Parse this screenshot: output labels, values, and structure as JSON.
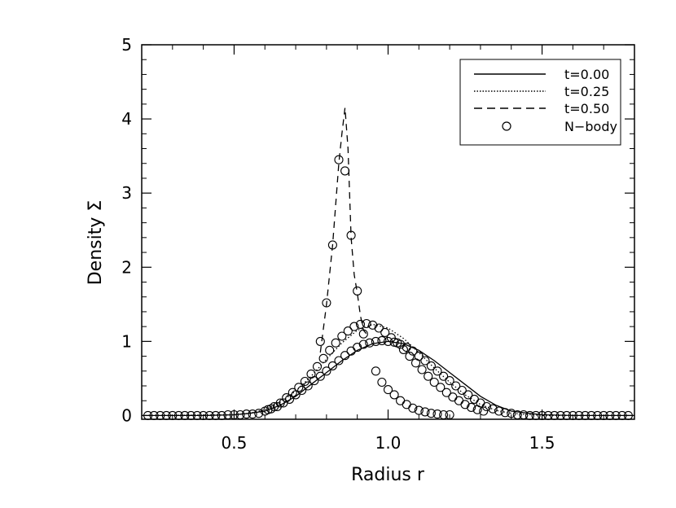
{
  "chart_data": {
    "type": "line",
    "title": "",
    "xlabel": "Radius r",
    "ylabel": "Density Σ",
    "xlim": [
      0.2,
      1.8
    ],
    "ylim": [
      -0.05,
      5.0
    ],
    "x_ticks": [
      {
        "value": 0.5,
        "label": "0.5"
      },
      {
        "value": 1.0,
        "label": "1.0"
      },
      {
        "value": 1.5,
        "label": "1.5"
      }
    ],
    "y_ticks": [
      {
        "value": 0,
        "label": "0"
      },
      {
        "value": 1,
        "label": "1"
      },
      {
        "value": 2,
        "label": "2"
      },
      {
        "value": 3,
        "label": "3"
      },
      {
        "value": 4,
        "label": "4"
      },
      {
        "value": 5,
        "label": "5"
      }
    ],
    "grid": false,
    "legend": {
      "placement": "top-right",
      "entries": [
        {
          "label": "t=0.00",
          "style": "solid"
        },
        {
          "label": "t=0.25",
          "style": "dotted"
        },
        {
          "label": "t=0.50",
          "style": "dashed"
        },
        {
          "label": "N−body",
          "style": "marker"
        }
      ]
    },
    "series": [
      {
        "name": "t=0.00",
        "style": "solid",
        "x": [
          0.2,
          0.4,
          0.5,
          0.55,
          0.6,
          0.65,
          0.7,
          0.75,
          0.8,
          0.85,
          0.9,
          0.95,
          1.0,
          1.05,
          1.1,
          1.15,
          1.2,
          1.25,
          1.3,
          1.35,
          1.4,
          1.5,
          1.6,
          1.8
        ],
        "y": [
          0,
          0,
          0.01,
          0.03,
          0.06,
          0.14,
          0.26,
          0.42,
          0.58,
          0.74,
          0.88,
          0.97,
          1.0,
          0.97,
          0.88,
          0.74,
          0.58,
          0.42,
          0.26,
          0.14,
          0.06,
          0.01,
          0,
          0
        ]
      },
      {
        "name": "t=0.25",
        "style": "dotted",
        "x": [
          0.2,
          0.5,
          0.55,
          0.6,
          0.65,
          0.7,
          0.75,
          0.8,
          0.85,
          0.9,
          0.95,
          1.0,
          1.05,
          1.1,
          1.15,
          1.2,
          1.25,
          1.3,
          1.35,
          1.4,
          1.5,
          1.8
        ],
        "y": [
          0,
          0.01,
          0.03,
          0.08,
          0.18,
          0.33,
          0.53,
          0.76,
          0.98,
          1.15,
          1.23,
          1.18,
          1.04,
          0.85,
          0.64,
          0.45,
          0.28,
          0.15,
          0.07,
          0.03,
          0,
          0
        ]
      },
      {
        "name": "t=0.50",
        "style": "dashed",
        "x": [
          0.78,
          0.8,
          0.82,
          0.84,
          0.85,
          0.86,
          0.87,
          0.88,
          0.89,
          0.9,
          0.91,
          0.92,
          0.93
        ],
        "y": [
          0.85,
          1.5,
          2.3,
          3.4,
          3.8,
          4.15,
          3.6,
          2.4,
          1.9,
          1.65,
          1.35,
          1.15,
          1.1
        ]
      }
    ],
    "nbody_points": [
      {
        "x": 0.22,
        "y": 0
      },
      {
        "x": 0.24,
        "y": 0
      },
      {
        "x": 0.26,
        "y": 0
      },
      {
        "x": 0.28,
        "y": 0
      },
      {
        "x": 0.3,
        "y": 0
      },
      {
        "x": 0.32,
        "y": 0
      },
      {
        "x": 0.34,
        "y": 0
      },
      {
        "x": 0.36,
        "y": 0
      },
      {
        "x": 0.38,
        "y": 0
      },
      {
        "x": 0.4,
        "y": 0
      },
      {
        "x": 0.42,
        "y": 0
      },
      {
        "x": 0.44,
        "y": 0
      },
      {
        "x": 0.46,
        "y": 0
      },
      {
        "x": 0.48,
        "y": 0.01
      },
      {
        "x": 0.5,
        "y": 0.01
      },
      {
        "x": 0.52,
        "y": 0.01
      },
      {
        "x": 0.54,
        "y": 0.02
      },
      {
        "x": 0.56,
        "y": 0.02
      },
      {
        "x": 0.58,
        "y": 0.03
      },
      {
        "x": 0.6,
        "y": 0.06
      },
      {
        "x": 0.62,
        "y": 0.09
      },
      {
        "x": 0.64,
        "y": 0.12
      },
      {
        "x": 0.66,
        "y": 0.17
      },
      {
        "x": 0.68,
        "y": 0.22
      },
      {
        "x": 0.7,
        "y": 0.28
      },
      {
        "x": 0.72,
        "y": 0.34
      },
      {
        "x": 0.74,
        "y": 0.4
      },
      {
        "x": 0.76,
        "y": 0.47
      },
      {
        "x": 0.78,
        "y": 0.53
      },
      {
        "x": 0.8,
        "y": 0.6
      },
      {
        "x": 0.82,
        "y": 0.67
      },
      {
        "x": 0.84,
        "y": 0.74
      },
      {
        "x": 0.86,
        "y": 0.81
      },
      {
        "x": 0.88,
        "y": 0.87
      },
      {
        "x": 0.9,
        "y": 0.92
      },
      {
        "x": 0.92,
        "y": 0.96
      },
      {
        "x": 0.94,
        "y": 0.98
      },
      {
        "x": 0.96,
        "y": 1.0
      },
      {
        "x": 0.98,
        "y": 1.01
      },
      {
        "x": 1.0,
        "y": 1.0
      },
      {
        "x": 1.02,
        "y": 0.99
      },
      {
        "x": 1.04,
        "y": 0.96
      },
      {
        "x": 1.06,
        "y": 0.92
      },
      {
        "x": 1.08,
        "y": 0.87
      },
      {
        "x": 1.1,
        "y": 0.8
      },
      {
        "x": 1.12,
        "y": 0.74
      },
      {
        "x": 1.14,
        "y": 0.67
      },
      {
        "x": 1.16,
        "y": 0.6
      },
      {
        "x": 1.18,
        "y": 0.53
      },
      {
        "x": 1.2,
        "y": 0.47
      },
      {
        "x": 1.22,
        "y": 0.4
      },
      {
        "x": 1.24,
        "y": 0.34
      },
      {
        "x": 1.26,
        "y": 0.28
      },
      {
        "x": 1.28,
        "y": 0.22
      },
      {
        "x": 1.3,
        "y": 0.17
      },
      {
        "x": 1.32,
        "y": 0.12
      },
      {
        "x": 1.34,
        "y": 0.09
      },
      {
        "x": 1.36,
        "y": 0.06
      },
      {
        "x": 1.38,
        "y": 0.04
      },
      {
        "x": 1.4,
        "y": 0.03
      },
      {
        "x": 0.61,
        "y": 0.08
      },
      {
        "x": 0.63,
        "y": 0.12
      },
      {
        "x": 0.65,
        "y": 0.17
      },
      {
        "x": 0.67,
        "y": 0.24
      },
      {
        "x": 0.69,
        "y": 0.31
      },
      {
        "x": 0.71,
        "y": 0.38
      },
      {
        "x": 0.73,
        "y": 0.46
      },
      {
        "x": 0.75,
        "y": 0.56
      },
      {
        "x": 0.77,
        "y": 0.66
      },
      {
        "x": 0.79,
        "y": 0.77
      },
      {
        "x": 0.81,
        "y": 0.88
      },
      {
        "x": 0.83,
        "y": 0.98
      },
      {
        "x": 0.85,
        "y": 1.07
      },
      {
        "x": 0.87,
        "y": 1.14
      },
      {
        "x": 0.89,
        "y": 1.2
      },
      {
        "x": 0.91,
        "y": 1.23
      },
      {
        "x": 0.93,
        "y": 1.24
      },
      {
        "x": 0.95,
        "y": 1.22
      },
      {
        "x": 0.97,
        "y": 1.18
      },
      {
        "x": 0.99,
        "y": 1.12
      },
      {
        "x": 1.01,
        "y": 1.05
      },
      {
        "x": 1.03,
        "y": 0.98
      },
      {
        "x": 1.05,
        "y": 0.89
      },
      {
        "x": 1.07,
        "y": 0.8
      },
      {
        "x": 1.09,
        "y": 0.71
      },
      {
        "x": 1.11,
        "y": 0.62
      },
      {
        "x": 1.13,
        "y": 0.53
      },
      {
        "x": 1.15,
        "y": 0.45
      },
      {
        "x": 1.17,
        "y": 0.38
      },
      {
        "x": 1.19,
        "y": 0.31
      },
      {
        "x": 1.21,
        "y": 0.25
      },
      {
        "x": 1.23,
        "y": 0.2
      },
      {
        "x": 1.25,
        "y": 0.15
      },
      {
        "x": 1.27,
        "y": 0.11
      },
      {
        "x": 1.29,
        "y": 0.08
      },
      {
        "x": 1.31,
        "y": 0.06
      },
      {
        "x": 0.78,
        "y": 1.0
      },
      {
        "x": 0.8,
        "y": 1.52
      },
      {
        "x": 0.82,
        "y": 2.3
      },
      {
        "x": 0.84,
        "y": 3.45
      },
      {
        "x": 0.86,
        "y": 3.3
      },
      {
        "x": 0.88,
        "y": 2.43
      },
      {
        "x": 0.9,
        "y": 1.68
      },
      {
        "x": 0.92,
        "y": 1.1
      },
      {
        "x": 0.96,
        "y": 0.6
      },
      {
        "x": 0.98,
        "y": 0.45
      },
      {
        "x": 1.0,
        "y": 0.35
      },
      {
        "x": 1.02,
        "y": 0.28
      },
      {
        "x": 1.04,
        "y": 0.2
      },
      {
        "x": 1.06,
        "y": 0.15
      },
      {
        "x": 1.08,
        "y": 0.1
      },
      {
        "x": 1.1,
        "y": 0.07
      },
      {
        "x": 1.12,
        "y": 0.05
      },
      {
        "x": 1.14,
        "y": 0.03
      },
      {
        "x": 1.16,
        "y": 0.02
      },
      {
        "x": 1.18,
        "y": 0.01
      },
      {
        "x": 1.2,
        "y": 0.01
      },
      {
        "x": 1.42,
        "y": 0.01
      },
      {
        "x": 1.44,
        "y": 0.01
      },
      {
        "x": 1.46,
        "y": 0
      },
      {
        "x": 1.48,
        "y": 0
      },
      {
        "x": 1.5,
        "y": 0
      },
      {
        "x": 1.52,
        "y": 0
      },
      {
        "x": 1.54,
        "y": 0
      },
      {
        "x": 1.56,
        "y": 0
      },
      {
        "x": 1.58,
        "y": 0
      },
      {
        "x": 1.6,
        "y": 0
      },
      {
        "x": 1.62,
        "y": 0
      },
      {
        "x": 1.64,
        "y": 0
      },
      {
        "x": 1.66,
        "y": 0
      },
      {
        "x": 1.68,
        "y": 0
      },
      {
        "x": 1.7,
        "y": 0
      },
      {
        "x": 1.72,
        "y": 0
      },
      {
        "x": 1.74,
        "y": 0
      },
      {
        "x": 1.76,
        "y": 0
      },
      {
        "x": 1.78,
        "y": 0
      }
    ]
  }
}
